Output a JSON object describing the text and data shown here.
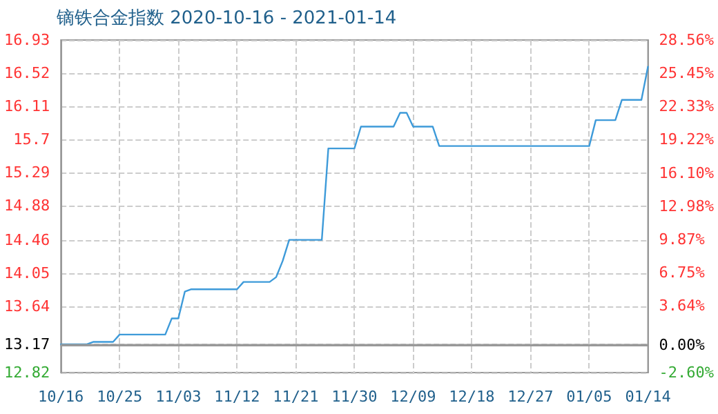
{
  "chart_data": {
    "type": "line",
    "title": "镝铁合金指数 2020-10-16 - 2021-01-14",
    "x": [
      "2020-10-16",
      "2020-10-20",
      "2020-10-21",
      "2020-10-24",
      "2020-10-25",
      "2020-11-01",
      "2020-11-02",
      "2020-11-03",
      "2020-11-04",
      "2020-11-05",
      "2020-11-12",
      "2020-11-13",
      "2020-11-17",
      "2020-11-18",
      "2020-11-19",
      "2020-11-20",
      "2020-11-25",
      "2020-11-26",
      "2020-11-30",
      "2020-12-01",
      "2020-12-06",
      "2020-12-07",
      "2020-12-08",
      "2020-12-09",
      "2020-12-12",
      "2020-12-13",
      "2021-01-05",
      "2021-01-06",
      "2021-01-09",
      "2021-01-10",
      "2021-01-13",
      "2021-01-14"
    ],
    "series": [
      {
        "color": "#3d9ad9",
        "values": [
          13.17,
          13.17,
          13.2,
          13.2,
          13.29,
          13.29,
          13.49,
          13.49,
          13.82,
          13.85,
          13.85,
          13.94,
          13.94,
          14.0,
          14.2,
          14.46,
          14.46,
          15.59,
          15.59,
          15.86,
          15.86,
          16.03,
          16.03,
          15.86,
          15.86,
          15.62,
          15.62,
          15.94,
          15.94,
          16.19,
          16.19,
          16.6
        ]
      }
    ],
    "xlim": [
      "2020-10-16",
      "2021-01-14"
    ],
    "xticks": [
      {
        "value": "2020-10-16",
        "label": "10/16"
      },
      {
        "value": "2020-10-25",
        "label": "10/25"
      },
      {
        "value": "2020-11-03",
        "label": "11/03"
      },
      {
        "value": "2020-11-12",
        "label": "11/12"
      },
      {
        "value": "2020-11-21",
        "label": "11/21"
      },
      {
        "value": "2020-11-30",
        "label": "11/30"
      },
      {
        "value": "2020-12-09",
        "label": "12/09"
      },
      {
        "value": "2020-12-18",
        "label": "12/18"
      },
      {
        "value": "2020-12-27",
        "label": "12/27"
      },
      {
        "value": "2021-01-05",
        "label": "01/05"
      },
      {
        "value": "2021-01-14",
        "label": "01/14"
      }
    ],
    "ylim": [
      12.82,
      16.93
    ],
    "yticks": [
      12.82,
      13.17,
      13.64,
      14.05,
      14.46,
      14.88,
      15.29,
      15.7,
      16.11,
      16.52,
      16.93
    ],
    "y2lim": [
      -2.6,
      28.56
    ],
    "y2ticks": [
      {
        "value": -2.6,
        "label": "-2.60%"
      },
      {
        "value": 0,
        "label": "0.00%"
      },
      {
        "value": 3.64,
        "label": "3.64%"
      },
      {
        "value": 6.75,
        "label": "6.75%"
      },
      {
        "value": 9.87,
        "label": "9.87%"
      },
      {
        "value": 12.98,
        "label": "12.98%"
      },
      {
        "value": 16.1,
        "label": "16.10%"
      },
      {
        "value": 19.22,
        "label": "19.22%"
      },
      {
        "value": 22.33,
        "label": "22.33%"
      },
      {
        "value": 25.45,
        "label": "25.45%"
      },
      {
        "value": 28.56,
        "label": "28.56%"
      }
    ],
    "ref_lines": [
      {
        "axis": "y",
        "value": 13.17,
        "color": "#999999"
      }
    ],
    "grid": true,
    "marker": "none",
    "line_style": "solid"
  }
}
